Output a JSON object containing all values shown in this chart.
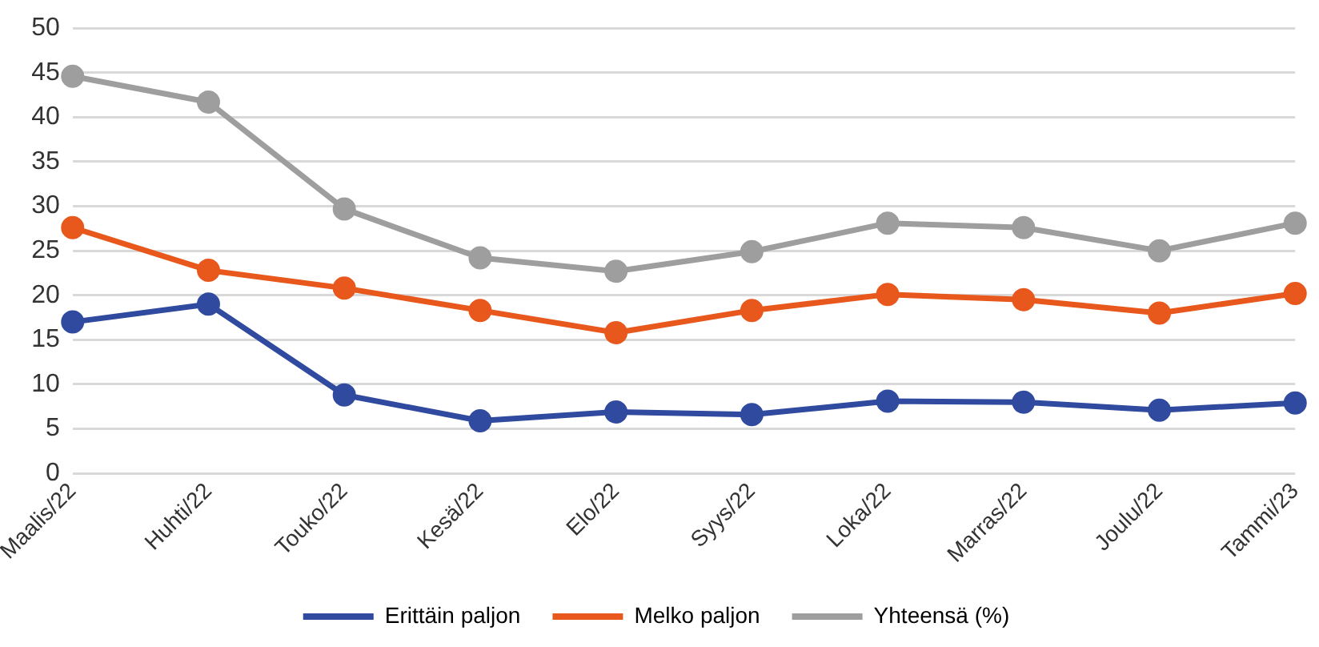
{
  "chart_data": {
    "type": "line",
    "categories": [
      "Maalis/22",
      "Huhti/22",
      "Touko/22",
      "Kesä/22",
      "Elo/22",
      "Syys/22",
      "Loka/22",
      "Marras/22",
      "Joulu/22",
      "Tammi/23"
    ],
    "series": [
      {
        "name": "Erittäin paljon",
        "color": "#2f4a9e",
        "values": [
          17,
          19,
          8.8,
          5.9,
          6.9,
          6.6,
          8.1,
          8.0,
          7.1,
          7.9
        ]
      },
      {
        "name": "Melko paljon",
        "color": "#e8581c",
        "values": [
          27.6,
          22.8,
          20.8,
          18.3,
          15.8,
          18.3,
          20.1,
          19.5,
          18.0,
          20.2
        ]
      },
      {
        "name": "Yhteensä (%)",
        "color": "#9e9e9e",
        "values": [
          44.6,
          41.7,
          29.7,
          24.2,
          22.7,
          24.9,
          28.1,
          27.6,
          25.0,
          28.1
        ]
      }
    ],
    "ylim": [
      0,
      50
    ],
    "yticks": [
      0,
      5,
      10,
      15,
      20,
      25,
      30,
      35,
      40,
      45,
      50
    ],
    "grid": "y",
    "legend": "bottom",
    "marker": "circle",
    "line_style": "solid"
  }
}
